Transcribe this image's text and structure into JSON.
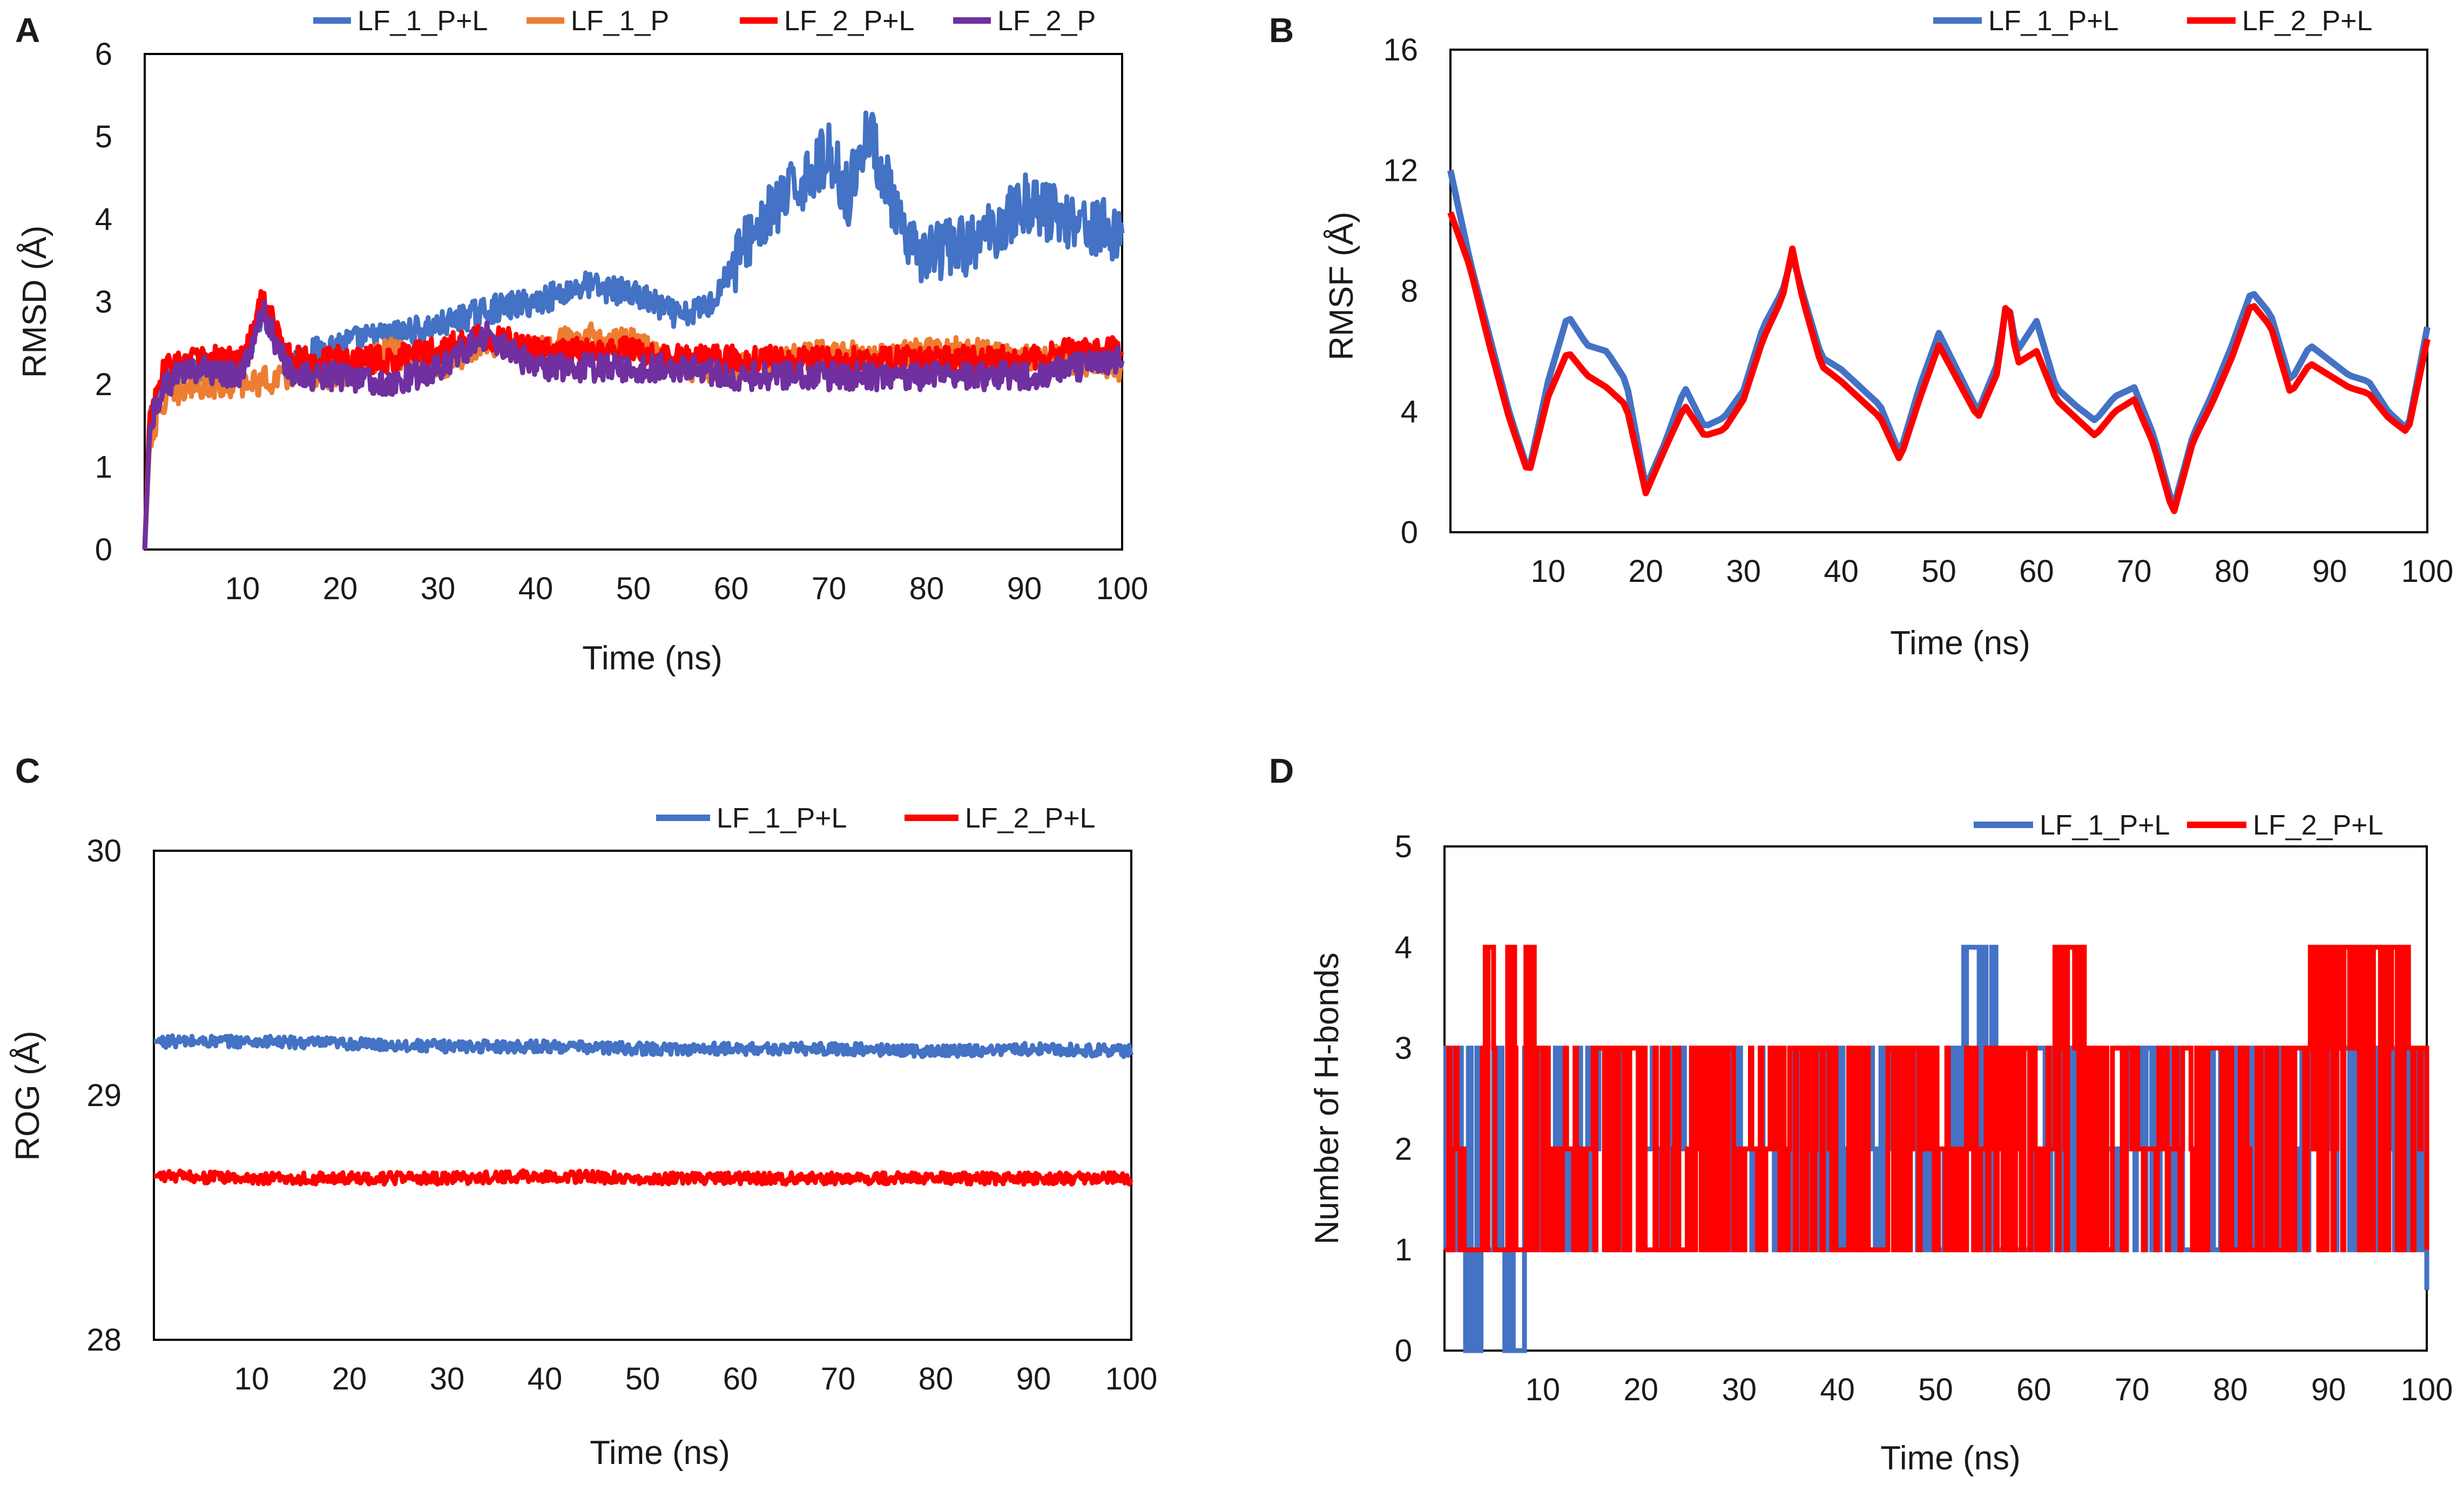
{
  "figure": {
    "colors": {
      "blue": "#4472C4",
      "orange": "#ED7D31",
      "red": "#FF0000",
      "purple": "#7030A0"
    }
  },
  "chart_data": [
    {
      "panel": "A",
      "type": "line",
      "title": "",
      "xlabel": "Time (ns)",
      "ylabel": "RMSD (Å)",
      "xlim": [
        0,
        100
      ],
      "ylim": [
        0,
        6
      ],
      "xticks": [
        10,
        20,
        30,
        40,
        50,
        60,
        70,
        80,
        90,
        100
      ],
      "yticks": [
        0,
        1,
        2,
        3,
        4,
        5,
        6
      ],
      "legend_position": "top",
      "series": [
        {
          "name": "LF_1_P+L",
          "color": "#4472C4",
          "x": [
            0,
            0.5,
            1,
            2,
            5,
            10,
            12,
            15,
            20,
            25,
            30,
            35,
            40,
            45,
            50,
            55,
            58,
            62,
            66,
            70,
            72,
            74,
            76,
            78,
            80,
            85,
            90,
            95,
            100
          ],
          "y": [
            0,
            1.5,
            1.7,
            2.1,
            2.2,
            2.2,
            2.9,
            2.3,
            2.5,
            2.6,
            2.7,
            2.9,
            3.0,
            3.2,
            3.1,
            2.8,
            3.0,
            3.8,
            4.3,
            4.8,
            4.3,
            5.1,
            4.4,
            3.6,
            3.6,
            3.7,
            4.2,
            4.0,
            3.8
          ]
        },
        {
          "name": "LF_1_P",
          "color": "#ED7D31",
          "x": [
            0,
            0.5,
            1,
            2,
            5,
            10,
            15,
            20,
            25,
            30,
            35,
            40,
            45,
            50,
            55,
            60,
            65,
            70,
            75,
            80,
            85,
            90,
            95,
            100
          ],
          "y": [
            0,
            1.3,
            1.5,
            1.8,
            2.0,
            2.0,
            2.1,
            2.1,
            2.4,
            2.2,
            2.5,
            2.4,
            2.6,
            2.5,
            2.2,
            2.2,
            2.3,
            2.4,
            2.3,
            2.4,
            2.4,
            2.3,
            2.3,
            2.2
          ]
        },
        {
          "name": "LF_2_P+L",
          "color": "#FF0000",
          "x": [
            0,
            0.5,
            1,
            2,
            5,
            10,
            12,
            15,
            20,
            25,
            30,
            35,
            40,
            45,
            50,
            55,
            60,
            65,
            70,
            75,
            80,
            85,
            90,
            95,
            100
          ],
          "y": [
            0,
            1.6,
            1.8,
            2.2,
            2.3,
            2.3,
            3.0,
            2.3,
            2.3,
            2.3,
            2.4,
            2.6,
            2.4,
            2.4,
            2.4,
            2.3,
            2.3,
            2.3,
            2.3,
            2.3,
            2.3,
            2.3,
            2.3,
            2.4,
            2.4
          ]
        },
        {
          "name": "LF_2_P",
          "color": "#7030A0",
          "x": [
            0,
            0.5,
            1,
            2,
            5,
            10,
            12,
            15,
            20,
            25,
            30,
            35,
            40,
            45,
            50,
            55,
            60,
            65,
            70,
            75,
            80,
            85,
            90,
            95,
            100
          ],
          "y": [
            0,
            1.4,
            1.7,
            2.0,
            2.2,
            2.1,
            2.9,
            2.1,
            2.1,
            2.0,
            2.2,
            2.6,
            2.2,
            2.2,
            2.2,
            2.2,
            2.1,
            2.1,
            2.1,
            2.1,
            2.1,
            2.1,
            2.1,
            2.2,
            2.3
          ]
        }
      ]
    },
    {
      "panel": "B",
      "type": "line",
      "title": "",
      "xlabel": "Time (ns)",
      "ylabel": "RMSF (Å)",
      "xlim": [
        0,
        100
      ],
      "ylim": [
        0,
        16
      ],
      "xticks": [
        10,
        20,
        30,
        40,
        50,
        60,
        70,
        80,
        90,
        100
      ],
      "yticks": [
        0,
        4,
        8,
        12,
        16
      ],
      "legend_position": "top-right",
      "series": [
        {
          "name": "LF_1_P+L",
          "color": "#4472C4",
          "x": [
            0,
            2,
            4,
            6,
            8,
            10,
            12,
            14,
            16,
            18,
            20,
            22,
            24,
            26,
            28,
            30,
            32,
            34,
            35,
            36,
            38,
            40,
            42,
            44,
            46,
            48,
            50,
            52,
            54,
            56,
            57,
            58,
            60,
            62,
            64,
            66,
            68,
            70,
            72,
            74,
            76,
            78,
            80,
            82,
            84,
            86,
            88,
            90,
            92,
            94,
            96,
            98,
            100
          ],
          "y": [
            12.0,
            9.0,
            6.5,
            4.0,
            2.0,
            5.0,
            7.2,
            6.2,
            6.0,
            5.0,
            1.5,
            3.0,
            4.8,
            3.5,
            3.8,
            4.7,
            6.8,
            8.0,
            9.2,
            8.0,
            5.8,
            5.4,
            4.8,
            4.2,
            2.6,
            4.8,
            6.6,
            5.3,
            4.0,
            5.6,
            7.8,
            6.0,
            7.0,
            4.8,
            4.2,
            3.7,
            4.5,
            4.8,
            3.2,
            0.8,
            3.2,
            4.6,
            6.2,
            8.0,
            7.2,
            5.0,
            6.2,
            5.7,
            5.2,
            5.0,
            4.0,
            3.4,
            6.8
          ]
        },
        {
          "name": "LF_2_P+L",
          "color": "#FF0000",
          "x": [
            0,
            2,
            4,
            6,
            8,
            10,
            12,
            14,
            16,
            18,
            20,
            22,
            24,
            26,
            28,
            30,
            32,
            34,
            35,
            36,
            38,
            40,
            42,
            44,
            46,
            48,
            50,
            52,
            54,
            56,
            57,
            58,
            60,
            62,
            64,
            66,
            68,
            70,
            72,
            74,
            76,
            78,
            80,
            82,
            84,
            86,
            88,
            90,
            92,
            94,
            96,
            98,
            100
          ],
          "y": [
            10.6,
            8.8,
            6.2,
            3.8,
            1.9,
            4.5,
            6.0,
            5.2,
            4.8,
            4.2,
            1.3,
            2.8,
            4.2,
            3.2,
            3.4,
            4.4,
            6.4,
            7.8,
            9.4,
            7.8,
            5.5,
            5.0,
            4.4,
            3.8,
            2.4,
            4.4,
            6.2,
            5.0,
            3.8,
            5.3,
            7.9,
            5.6,
            6.0,
            4.4,
            3.8,
            3.2,
            4.0,
            4.4,
            2.9,
            0.6,
            3.0,
            4.3,
            5.8,
            7.6,
            6.8,
            4.6,
            5.6,
            5.2,
            4.8,
            4.6,
            3.8,
            3.3,
            6.4
          ]
        }
      ]
    },
    {
      "panel": "C",
      "type": "line",
      "title": "",
      "xlabel": "Time (ns)",
      "ylabel": "ROG (Å)",
      "xlim": [
        0,
        100
      ],
      "ylim": [
        28,
        30
      ],
      "xticks": [
        10,
        20,
        30,
        40,
        50,
        60,
        70,
        80,
        90,
        100
      ],
      "yticks": [
        28,
        29,
        30
      ],
      "legend_position": "top-right",
      "series": [
        {
          "name": "LF_1_P+L",
          "color": "#4472C4",
          "x": [
            0,
            10,
            20,
            30,
            40,
            50,
            60,
            70,
            80,
            90,
            100
          ],
          "y": [
            29.22,
            29.22,
            29.21,
            29.2,
            29.2,
            29.19,
            29.19,
            29.19,
            29.18,
            29.19,
            29.18
          ]
        },
        {
          "name": "LF_2_P+L",
          "color": "#FF0000",
          "x": [
            0,
            10,
            20,
            30,
            40,
            50,
            60,
            70,
            80,
            90,
            100
          ],
          "y": [
            28.67,
            28.66,
            28.66,
            28.66,
            28.67,
            28.66,
            28.66,
            28.66,
            28.66,
            28.66,
            28.66
          ]
        }
      ]
    },
    {
      "panel": "D",
      "type": "line",
      "title": "",
      "xlabel": "Time (ns)",
      "ylabel": "Number of H-bonds",
      "xlim": [
        0,
        100
      ],
      "ylim": [
        0,
        5
      ],
      "xticks": [
        10,
        20,
        30,
        40,
        50,
        60,
        70,
        80,
        90,
        100
      ],
      "yticks": [
        0,
        1,
        2,
        3,
        4,
        5
      ],
      "legend_position": "top-right",
      "series": [
        {
          "name": "LF_1_P+L",
          "color": "#4472C4",
          "x": [
            0,
            2,
            4,
            6,
            8,
            10,
            15,
            20,
            25,
            30,
            35,
            40,
            45,
            50,
            52,
            54,
            56,
            60,
            65,
            70,
            75,
            80,
            85,
            90,
            95,
            99,
            100
          ],
          "y": [
            3,
            0,
            1,
            0,
            3,
            2,
            3,
            2,
            3,
            2,
            3,
            2,
            3,
            2,
            4,
            4,
            1,
            3,
            2,
            3,
            1,
            3,
            2,
            3,
            1,
            1,
            0.6
          ]
        },
        {
          "name": "LF_2_P+L",
          "color": "#FF0000",
          "x": [
            0,
            2,
            4,
            5,
            6,
            7,
            8,
            10,
            15,
            20,
            25,
            30,
            35,
            40,
            45,
            50,
            55,
            60,
            62,
            65,
            70,
            75,
            80,
            85,
            88,
            90,
            92,
            94,
            96,
            98,
            100
          ],
          "y": [
            2,
            1,
            4,
            1,
            4,
            1,
            4,
            2,
            3,
            1,
            3,
            2,
            3,
            1,
            3,
            2,
            3,
            2,
            4,
            3,
            2,
            3,
            1,
            3,
            4,
            4,
            4,
            4,
            4,
            3,
            1
          ]
        }
      ]
    }
  ]
}
